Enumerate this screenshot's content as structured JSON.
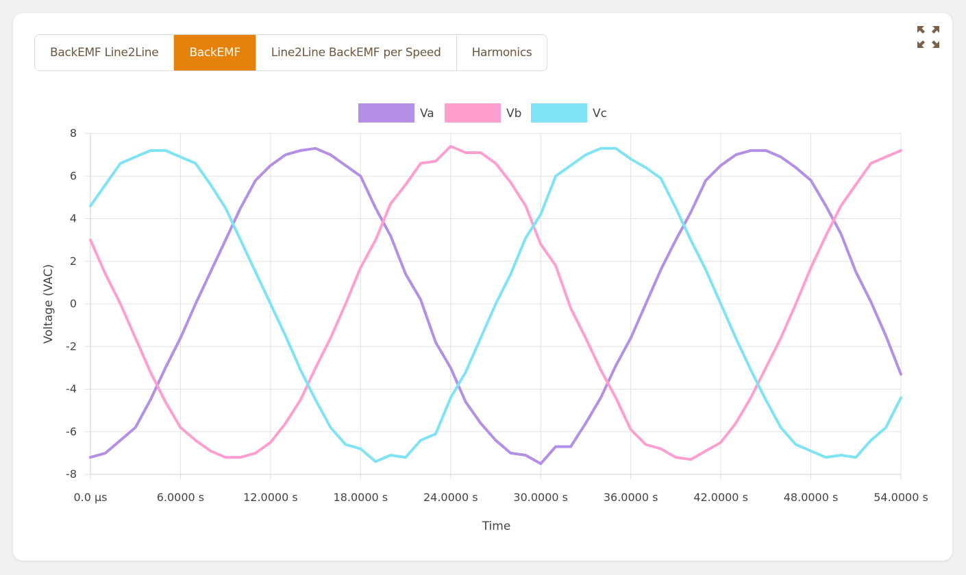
{
  "tabs": [
    {
      "label": "BackEMF Line2Line",
      "active": false
    },
    {
      "label": "BackEMF",
      "active": true
    },
    {
      "label": "Line2Line BackEMF per Speed",
      "active": false
    },
    {
      "label": "Harmonics",
      "active": false
    }
  ],
  "expand_icon": "expand-arrows-icon",
  "colors": {
    "accent": "#e5820c",
    "tab_text": "#6b5640"
  },
  "chart_data": {
    "type": "line",
    "xlabel": "Time",
    "ylabel": "Voltage (VAC)",
    "xlim": [
      0,
      54
    ],
    "ylim": [
      -8,
      8
    ],
    "x_ticks": [
      {
        "value": 0,
        "label": "0.0 μs"
      },
      {
        "value": 6,
        "label": "6.0000 s"
      },
      {
        "value": 12,
        "label": "12.0000 s"
      },
      {
        "value": 18,
        "label": "18.0000 s"
      },
      {
        "value": 24,
        "label": "24.0000 s"
      },
      {
        "value": 30,
        "label": "30.0000 s"
      },
      {
        "value": 36,
        "label": "36.0000 s"
      },
      {
        "value": 42,
        "label": "42.0000 s"
      },
      {
        "value": 48,
        "label": "48.0000 s"
      },
      {
        "value": 54,
        "label": "54.0000 s"
      }
    ],
    "y_ticks": [
      {
        "value": 8,
        "label": "8"
      },
      {
        "value": 6,
        "label": "6"
      },
      {
        "value": 4,
        "label": "4"
      },
      {
        "value": 2,
        "label": "2"
      },
      {
        "value": 0,
        "label": "0"
      },
      {
        "value": -2,
        "label": "-2"
      },
      {
        "value": -4,
        "label": "-4"
      },
      {
        "value": -6,
        "label": "-6"
      },
      {
        "value": -8,
        "label": "-8"
      }
    ],
    "grid": true,
    "legend_position": "top-center",
    "series": [
      {
        "name": "Va",
        "color": "#b38fe6",
        "points": [
          [
            0,
            -7.2
          ],
          [
            1,
            -7.0
          ],
          [
            2,
            -6.4
          ],
          [
            3,
            -5.8
          ],
          [
            4,
            -4.5
          ],
          [
            5,
            -3.0
          ],
          [
            6,
            -1.6
          ],
          [
            7,
            0.0
          ],
          [
            8,
            1.5
          ],
          [
            9,
            3.0
          ],
          [
            10,
            4.5
          ],
          [
            11,
            5.8
          ],
          [
            12,
            6.5
          ],
          [
            13,
            7.0
          ],
          [
            14,
            7.2
          ],
          [
            15,
            7.3
          ],
          [
            16,
            7.0
          ],
          [
            17,
            6.5
          ],
          [
            18,
            6.0
          ],
          [
            19,
            4.5
          ],
          [
            20,
            3.2
          ],
          [
            21,
            1.4
          ],
          [
            22,
            0.2
          ],
          [
            23,
            -1.8
          ],
          [
            24,
            -3.0
          ],
          [
            25,
            -4.6
          ],
          [
            26,
            -5.6
          ],
          [
            27,
            -6.4
          ],
          [
            28,
            -7.0
          ],
          [
            29,
            -7.1
          ],
          [
            30,
            -7.5
          ],
          [
            31,
            -6.7
          ],
          [
            32,
            -6.7
          ],
          [
            33,
            -5.6
          ],
          [
            34,
            -4.4
          ],
          [
            35,
            -2.9
          ],
          [
            36,
            -1.6
          ],
          [
            37,
            0.0
          ],
          [
            38,
            1.6
          ],
          [
            39,
            3.0
          ],
          [
            40,
            4.3
          ],
          [
            41,
            5.8
          ],
          [
            42,
            6.5
          ],
          [
            43,
            7.0
          ],
          [
            44,
            7.2
          ],
          [
            45,
            7.2
          ],
          [
            46,
            6.9
          ],
          [
            47,
            6.4
          ],
          [
            48,
            5.8
          ],
          [
            49,
            4.6
          ],
          [
            50,
            3.3
          ],
          [
            51,
            1.5
          ],
          [
            52,
            0.1
          ],
          [
            53,
            -1.5
          ],
          [
            54,
            -3.3
          ]
        ]
      },
      {
        "name": "Vb",
        "color": "#ff9fd0",
        "points": [
          [
            0,
            3.0
          ],
          [
            1,
            1.4
          ],
          [
            2,
            0.0
          ],
          [
            3,
            -1.6
          ],
          [
            4,
            -3.2
          ],
          [
            5,
            -4.6
          ],
          [
            6,
            -5.8
          ],
          [
            7,
            -6.4
          ],
          [
            8,
            -6.9
          ],
          [
            9,
            -7.2
          ],
          [
            10,
            -7.2
          ],
          [
            11,
            -7.0
          ],
          [
            12,
            -6.5
          ],
          [
            13,
            -5.6
          ],
          [
            14,
            -4.5
          ],
          [
            15,
            -3.0
          ],
          [
            16,
            -1.6
          ],
          [
            17,
            0.0
          ],
          [
            18,
            1.7
          ],
          [
            19,
            3.0
          ],
          [
            20,
            4.7
          ],
          [
            21,
            5.6
          ],
          [
            22,
            6.6
          ],
          [
            23,
            6.7
          ],
          [
            24,
            7.4
          ],
          [
            25,
            7.1
          ],
          [
            26,
            7.1
          ],
          [
            27,
            6.6
          ],
          [
            28,
            5.7
          ],
          [
            29,
            4.6
          ],
          [
            30,
            2.8
          ],
          [
            31,
            1.8
          ],
          [
            32,
            -0.2
          ],
          [
            33,
            -1.6
          ],
          [
            34,
            -3.1
          ],
          [
            35,
            -4.4
          ],
          [
            36,
            -5.9
          ],
          [
            37,
            -6.6
          ],
          [
            38,
            -6.8
          ],
          [
            39,
            -7.2
          ],
          [
            40,
            -7.3
          ],
          [
            41,
            -6.9
          ],
          [
            42,
            -6.5
          ],
          [
            43,
            -5.6
          ],
          [
            44,
            -4.4
          ],
          [
            45,
            -3.0
          ],
          [
            46,
            -1.6
          ],
          [
            47,
            0.0
          ],
          [
            48,
            1.7
          ],
          [
            49,
            3.2
          ],
          [
            50,
            4.6
          ],
          [
            51,
            5.6
          ],
          [
            52,
            6.6
          ],
          [
            53,
            6.9
          ],
          [
            54,
            7.2
          ]
        ]
      },
      {
        "name": "Vc",
        "color": "#7fe3f3",
        "points": [
          [
            0,
            4.6
          ],
          [
            1,
            5.6
          ],
          [
            2,
            6.6
          ],
          [
            3,
            6.9
          ],
          [
            4,
            7.2
          ],
          [
            5,
            7.2
          ],
          [
            6,
            6.9
          ],
          [
            7,
            6.6
          ],
          [
            8,
            5.6
          ],
          [
            9,
            4.5
          ],
          [
            10,
            3.0
          ],
          [
            11,
            1.5
          ],
          [
            12,
            0.0
          ],
          [
            13,
            -1.5
          ],
          [
            14,
            -3.1
          ],
          [
            15,
            -4.5
          ],
          [
            16,
            -5.8
          ],
          [
            17,
            -6.6
          ],
          [
            18,
            -6.8
          ],
          [
            19,
            -7.4
          ],
          [
            20,
            -7.1
          ],
          [
            21,
            -7.2
          ],
          [
            22,
            -6.4
          ],
          [
            23,
            -6.1
          ],
          [
            24,
            -4.4
          ],
          [
            25,
            -3.2
          ],
          [
            26,
            -1.6
          ],
          [
            27,
            0.0
          ],
          [
            28,
            1.4
          ],
          [
            29,
            3.1
          ],
          [
            30,
            4.2
          ],
          [
            31,
            6.0
          ],
          [
            32,
            6.5
          ],
          [
            33,
            7.0
          ],
          [
            34,
            7.3
          ],
          [
            35,
            7.3
          ],
          [
            36,
            6.8
          ],
          [
            37,
            6.4
          ],
          [
            38,
            5.9
          ],
          [
            39,
            4.5
          ],
          [
            40,
            3.0
          ],
          [
            41,
            1.6
          ],
          [
            42,
            0.0
          ],
          [
            43,
            -1.6
          ],
          [
            44,
            -3.1
          ],
          [
            45,
            -4.5
          ],
          [
            46,
            -5.8
          ],
          [
            47,
            -6.6
          ],
          [
            48,
            -6.9
          ],
          [
            49,
            -7.2
          ],
          [
            50,
            -7.1
          ],
          [
            51,
            -7.2
          ],
          [
            52,
            -6.4
          ],
          [
            53,
            -5.8
          ],
          [
            54,
            -4.4
          ]
        ]
      }
    ]
  }
}
